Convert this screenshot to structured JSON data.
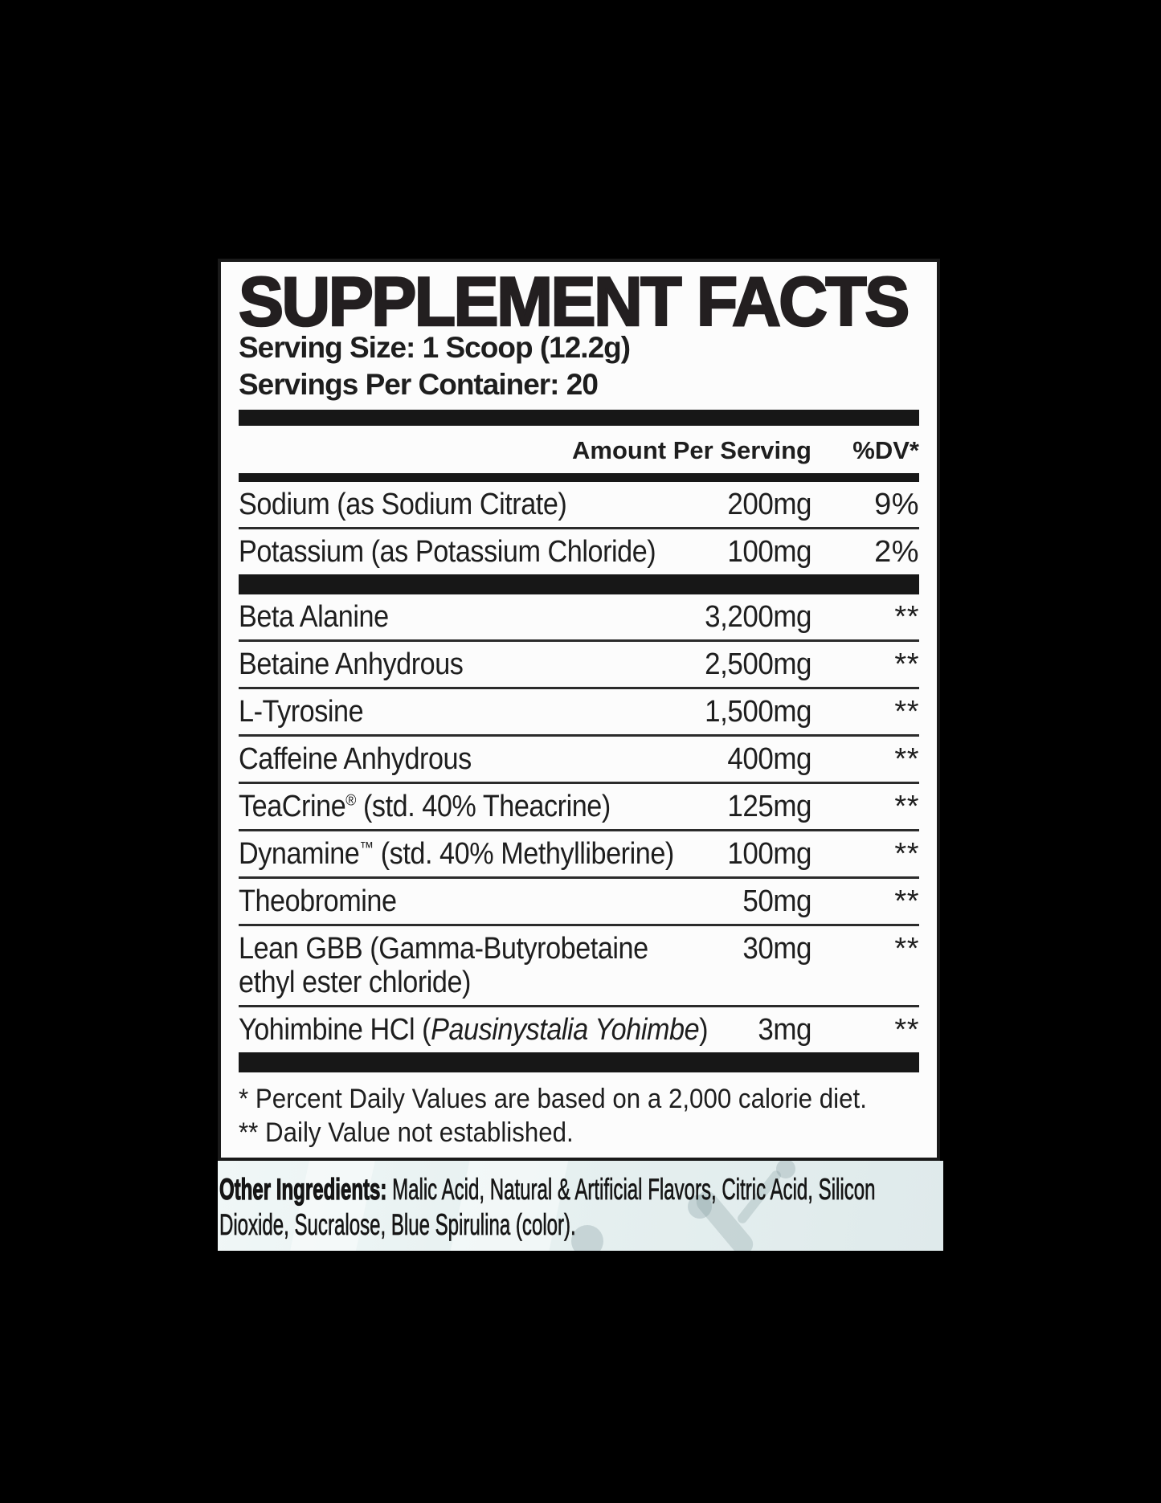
{
  "colors": {
    "page_background": "#000000",
    "panel_background": "#fcfcfc",
    "ink": "#1e1e1e",
    "bar": "#171717",
    "other_section_background": "#e6f0f0"
  },
  "header": {
    "title": "SUPPLEMENT FACTS",
    "serving_size": "Serving Size: 1 Scoop (12.2g)",
    "servings_per_container": "Servings Per Container: 20"
  },
  "table": {
    "amount_header": "Amount Per Serving",
    "dv_header": "%DV*",
    "groups": [
      {
        "rows": [
          {
            "parts": [
              {
                "t": "text",
                "v": "Sodium (as Sodium Citrate)"
              }
            ],
            "amount": "200mg",
            "dv": "9%"
          },
          {
            "parts": [
              {
                "t": "text",
                "v": "Potassium (as Potassium Chloride)"
              }
            ],
            "amount": "100mg",
            "dv": "2%"
          }
        ]
      },
      {
        "rows": [
          {
            "parts": [
              {
                "t": "text",
                "v": "Beta Alanine"
              }
            ],
            "amount": "3,200mg",
            "dv": "**"
          },
          {
            "parts": [
              {
                "t": "text",
                "v": "Betaine Anhydrous"
              }
            ],
            "amount": "2,500mg",
            "dv": "**"
          },
          {
            "parts": [
              {
                "t": "text",
                "v": "L-Tyrosine"
              }
            ],
            "amount": "1,500mg",
            "dv": "**"
          },
          {
            "parts": [
              {
                "t": "text",
                "v": "Caffeine Anhydrous"
              }
            ],
            "amount": "400mg",
            "dv": "**"
          },
          {
            "parts": [
              {
                "t": "text",
                "v": "TeaCrine"
              },
              {
                "t": "sup",
                "v": "®"
              },
              {
                "t": "text",
                "v": " (std. 40% Theacrine)"
              }
            ],
            "amount": "125mg",
            "dv": "**"
          },
          {
            "parts": [
              {
                "t": "text",
                "v": "Dynamine"
              },
              {
                "t": "sup",
                "v": "™"
              },
              {
                "t": "text",
                "v": " (std. 40% Methylliberine)"
              }
            ],
            "amount": "100mg",
            "dv": "**"
          },
          {
            "parts": [
              {
                "t": "text",
                "v": "Theobromine"
              }
            ],
            "amount": "50mg",
            "dv": "**"
          },
          {
            "parts": [
              {
                "t": "text",
                "v": "Lean GBB (Gamma-Butyrobetaine"
              },
              {
                "t": "br"
              },
              {
                "t": "text",
                "v": "ethyl ester chloride)"
              }
            ],
            "amount": "30mg",
            "dv": "**"
          },
          {
            "parts": [
              {
                "t": "text",
                "v": "Yohimbine HCl ("
              },
              {
                "t": "i",
                "v": "Pausinystalia Yohimbe"
              },
              {
                "t": "text",
                "v": ")"
              }
            ],
            "amount": "3mg",
            "dv": "**"
          }
        ]
      }
    ]
  },
  "footnotes": [
    "* Percent Daily Values are based on a 2,000 calorie diet.",
    "** Daily Value not established."
  ],
  "other_ingredients": {
    "label": "Other Ingredients:",
    "line1_rest": " Malic Acid, Natural & Artificial Flavors, Citric Acid, Silicon",
    "line2": "Dioxide, Sucralose, Blue Spirulina (color)."
  }
}
